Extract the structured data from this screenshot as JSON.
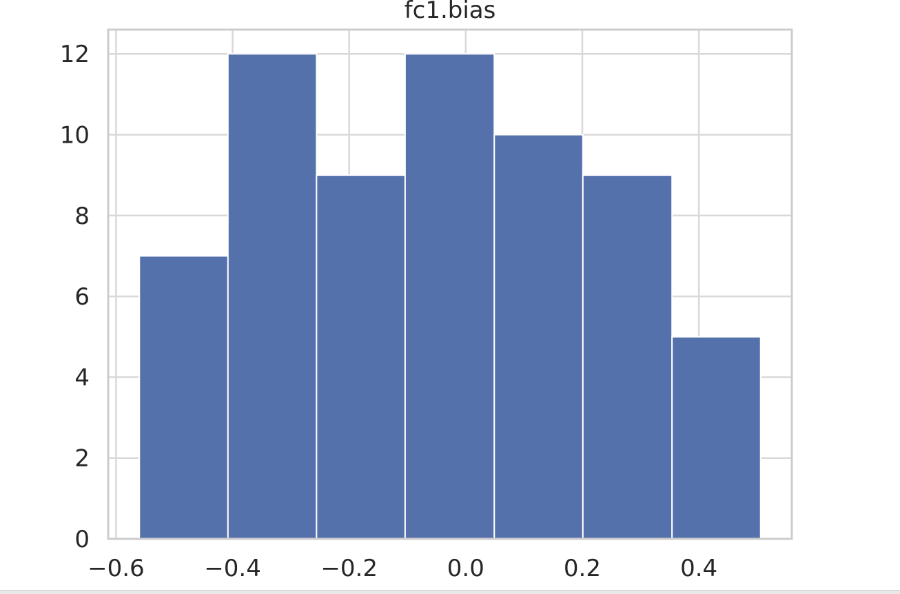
{
  "chart_data": {
    "type": "bar",
    "title": "fc1.bias",
    "xlabel": "",
    "ylabel": "",
    "bins": [
      {
        "x0": -0.56,
        "x1": -0.408,
        "count": 7
      },
      {
        "x0": -0.408,
        "x1": -0.256,
        "count": 12
      },
      {
        "x0": -0.256,
        "x1": -0.104,
        "count": 9
      },
      {
        "x0": -0.104,
        "x1": 0.049,
        "count": 12
      },
      {
        "x0": 0.049,
        "x1": 0.201,
        "count": 10
      },
      {
        "x0": 0.201,
        "x1": 0.354,
        "count": 9
      },
      {
        "x0": 0.354,
        "x1": 0.506,
        "count": 5
      }
    ],
    "xlim": [
      -0.6135,
      0.5595
    ],
    "ylim": [
      0,
      12.6
    ],
    "xticks": [
      -0.6,
      -0.4,
      -0.2,
      0.0,
      0.2,
      0.4
    ],
    "xtick_labels": [
      "−0.6",
      "−0.4",
      "−0.2",
      "0.0",
      "0.2",
      "0.4"
    ],
    "yticks": [
      0,
      2,
      4,
      6,
      8,
      10,
      12
    ],
    "ytick_labels": [
      "0",
      "2",
      "4",
      "6",
      "8",
      "10",
      "12"
    ],
    "grid": true,
    "colors": {
      "bar": "#5471ab",
      "bar_edge": "#ffffff",
      "grid": "#d9d9d9",
      "spine": "#cccccc",
      "text": "#262626"
    }
  }
}
